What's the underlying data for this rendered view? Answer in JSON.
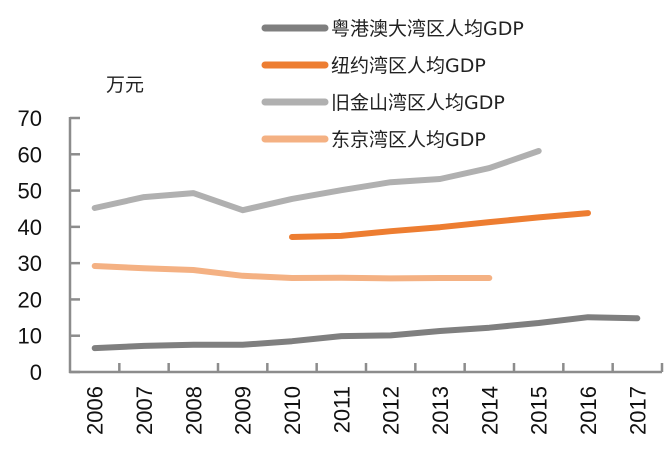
{
  "chart_data": {
    "type": "line",
    "title": "",
    "ylabel": "万元",
    "xlabel": "",
    "ylim": [
      0,
      70
    ],
    "yticks": [
      0,
      10,
      20,
      30,
      40,
      50,
      60,
      70
    ],
    "grid": false,
    "legend_position": "top-center",
    "categories": [
      "2006",
      "2007",
      "2008",
      "2009",
      "2010",
      "2011",
      "2012",
      "2013",
      "2014",
      "2015",
      "2016",
      "2017"
    ],
    "series": [
      {
        "name": "粤港澳大湾区人均GDP",
        "color": "#7F7F7F",
        "values": [
          6.6,
          7.2,
          7.5,
          7.5,
          8.5,
          9.9,
          10.1,
          11.3,
          12.2,
          13.5,
          15.1,
          14.8
        ]
      },
      {
        "name": "纽约湾区人均GDP",
        "color": "#ED7D31",
        "values": [
          null,
          null,
          null,
          null,
          37.2,
          37.5,
          38.8,
          39.9,
          41.3,
          42.6,
          43.8,
          null
        ]
      },
      {
        "name": "旧金山湾区人均GDP",
        "color": "#B0B0B0",
        "values": [
          45.2,
          48.2,
          49.3,
          44.6,
          47.7,
          50.1,
          52.3,
          53.2,
          56.2,
          60.9,
          null,
          null
        ]
      },
      {
        "name": "东京湾区人均GDP",
        "color": "#F4B183",
        "values": [
          29.2,
          28.6,
          28.1,
          26.5,
          25.9,
          26.0,
          25.8,
          25.9,
          25.9,
          null,
          null,
          null
        ]
      }
    ]
  }
}
